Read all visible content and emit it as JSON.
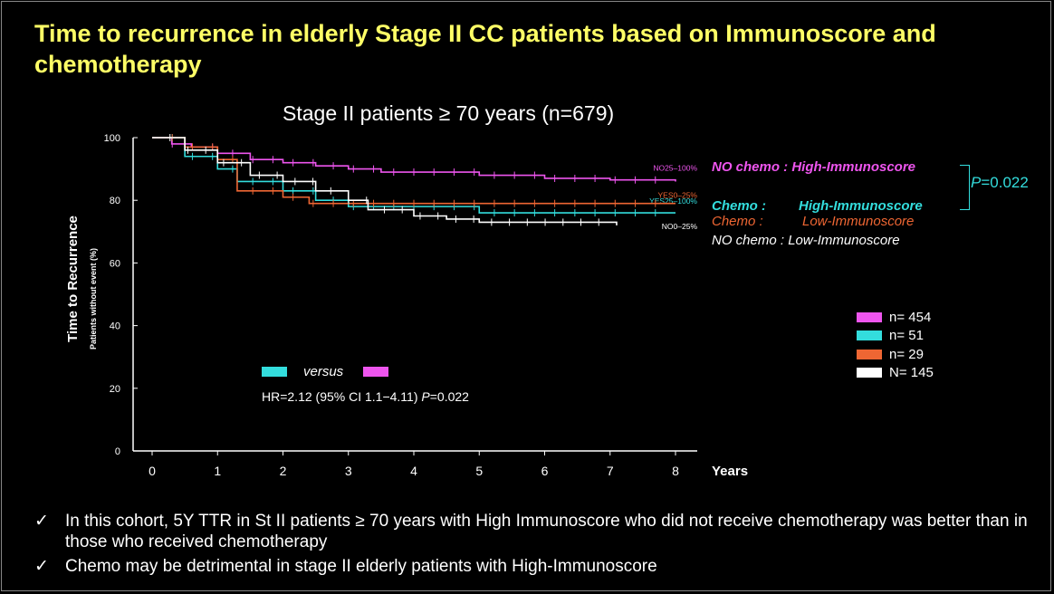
{
  "title": "Time to recurrence in elderly Stage II CC patients based on Immunoscore and chemotherapy",
  "subtitle": "Stage II patients ≥ 70 years (n=679)",
  "chart_data": {
    "type": "line",
    "subtype": "kaplan-meier",
    "ylabel": "Time to Recurrence",
    "ylabel_sub": "Patients without event (%)",
    "xlabel": "Years",
    "xlim": [
      0,
      8
    ],
    "ylim": [
      0,
      100
    ],
    "xticks": [
      0,
      1,
      2,
      3,
      4,
      5,
      6,
      7,
      8
    ],
    "yticks": [
      0,
      20,
      40,
      60,
      80,
      100
    ],
    "series": [
      {
        "name": "NO chemo : High-Immunoscore",
        "end_label": "NO25–100%",
        "color": "#ee55ee",
        "x": [
          0,
          0.3,
          0.6,
          1.0,
          1.5,
          2.0,
          2.5,
          3.0,
          3.5,
          4.0,
          5.0,
          6.0,
          7.0,
          8.0
        ],
        "y": [
          100,
          98,
          97,
          95,
          93,
          92,
          91,
          90,
          89,
          89,
          88,
          87,
          86.5,
          86
        ]
      },
      {
        "name": "Chemo : High-Immunoscore",
        "end_label": "YES25–100%",
        "color": "#33dddd",
        "x": [
          0,
          0.5,
          1.0,
          1.3,
          2.0,
          2.5,
          3.0,
          4.0,
          4.8,
          5.0,
          8.0
        ],
        "y": [
          100,
          94,
          90,
          86,
          83,
          80,
          78,
          78,
          78,
          76,
          76
        ]
      },
      {
        "name": "Chemo : Low-Immunoscore",
        "end_label": "YES0–25%",
        "color": "#ee6633",
        "x": [
          0,
          0.5,
          1.0,
          1.3,
          2.0,
          2.4,
          3.0,
          8.0
        ],
        "y": [
          100,
          97,
          93,
          83,
          81,
          79,
          79,
          79
        ]
      },
      {
        "name": "NO chemo : Low-Immunoscore",
        "end_label": "NO0–25%",
        "color": "#ffffff",
        "x": [
          0,
          0.5,
          1.0,
          1.5,
          2.0,
          2.5,
          3.0,
          3.3,
          4.0,
          4.5,
          5.0,
          7.0,
          7.1
        ],
        "y": [
          100,
          96,
          92,
          88,
          86,
          83,
          80,
          77,
          75,
          74,
          73,
          73,
          72
        ]
      }
    ],
    "legend": [
      {
        "label": "n= 454",
        "color": "#ee55ee"
      },
      {
        "label": "n= 51",
        "color": "#33dddd"
      },
      {
        "label": "n= 29",
        "color": "#ee6633"
      },
      {
        "label": "N= 145",
        "color": "#ffffff"
      }
    ]
  },
  "annotations": {
    "nochemo_high": "NO chemo : High-Immunoscore",
    "chemo_high_a": "Chemo :",
    "chemo_high_b": "High-Immunoscore",
    "chemo_low_a": "Chemo :",
    "chemo_low_b": "Low-Immunoscore",
    "nochemo_low": "NO chemo : Low-Immunoscore",
    "pvalue": "P=0.022"
  },
  "comparison": {
    "versus": "versus",
    "hr_text": "HR=2.12 (95% CI 1.1−4.11) P=0.022"
  },
  "bullets": [
    "In this cohort, 5Y TTR in St II patients ≥ 70 years with High Immunoscore who did not receive chemotherapy was better than in those who received chemotherapy",
    "Chemo may be detrimental in stage II elderly patients with High-Immunoscore"
  ]
}
